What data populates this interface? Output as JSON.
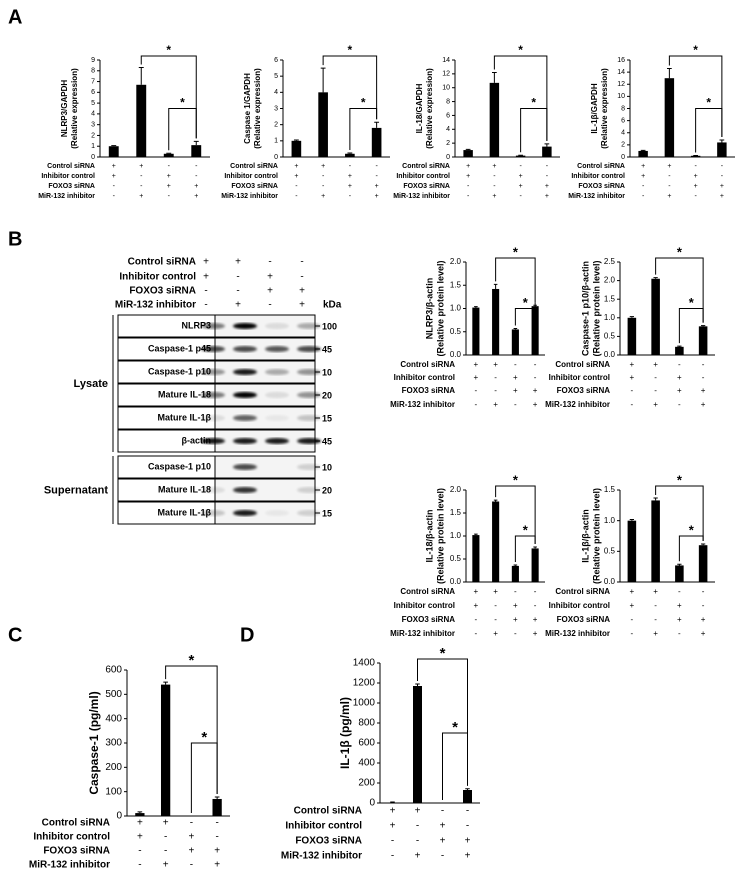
{
  "panels": [
    "A",
    "B",
    "C",
    "D"
  ],
  "treatments": {
    "labels": [
      "Control siRNA",
      "Inhibitor control",
      "FOXO3 siRNA",
      "MiR-132 inhibitor"
    ],
    "signs": [
      [
        "+",
        "+",
        "-",
        "-"
      ],
      [
        "+",
        "-",
        "+",
        "-"
      ],
      [
        "-",
        "-",
        "+",
        "+"
      ],
      [
        "-",
        "+",
        "-",
        "+"
      ]
    ]
  },
  "blot": {
    "kda_label": "kDa",
    "groups": [
      {
        "label": "Lysate",
        "bands": [
          {
            "name": "NLRP3",
            "kda": 100
          },
          {
            "name": "Caspase-1 p45",
            "kda": 45
          },
          {
            "name": "Caspase-1 p10",
            "kda": 10
          },
          {
            "name": "Mature IL-18",
            "kda": 20
          },
          {
            "name": "Mature IL-1β",
            "kda": 15
          },
          {
            "name": "β-actin",
            "kda": 45
          }
        ]
      },
      {
        "label": "Supernatant",
        "bands": [
          {
            "name": "Caspase-1 p10",
            "kda": 10
          },
          {
            "name": "Mature IL-18",
            "kda": 20
          },
          {
            "name": "Mature IL-1β",
            "kda": 15
          }
        ]
      }
    ]
  },
  "chart_data": [
    {
      "type": "bar",
      "ylabel": [
        "NLRP3/GAPDH",
        "(Relative expression)"
      ],
      "ylim": [
        0,
        9
      ],
      "yticks": [
        0,
        1,
        2,
        3,
        4,
        5,
        6,
        7,
        8,
        9
      ],
      "values": [
        1,
        6.7,
        0.3,
        1.1
      ],
      "errors": [
        0.05,
        1.6,
        0.05,
        0.35
      ],
      "color": "#000000",
      "significance": "*"
    },
    {
      "type": "bar",
      "ylabel": [
        "Caspase 1/GAPDH",
        "(Relative expression)"
      ],
      "ylim": [
        0,
        6
      ],
      "yticks": [
        0,
        1,
        2,
        3,
        4,
        5,
        6
      ],
      "values": [
        1,
        4,
        0.2,
        1.8
      ],
      "errors": [
        0.05,
        1.5,
        0.05,
        0.35
      ],
      "color": "#000000",
      "significance": "*"
    },
    {
      "type": "bar",
      "ylabel": [
        "IL-18/GAPDH",
        "(Relative expression)"
      ],
      "ylim": [
        0,
        14
      ],
      "yticks": [
        0,
        2,
        4,
        6,
        8,
        10,
        12,
        14
      ],
      "values": [
        1,
        10.7,
        0.2,
        1.5
      ],
      "errors": [
        0.1,
        1.5,
        0.05,
        0.4
      ],
      "color": "#000000",
      "significance": "*"
    },
    {
      "type": "bar",
      "ylabel": [
        "IL-1β/GAPDH",
        "(Relative expression)"
      ],
      "ylim": [
        0,
        16
      ],
      "yticks": [
        0,
        2,
        4,
        6,
        8,
        10,
        12,
        14,
        16
      ],
      "values": [
        1,
        13,
        0.2,
        2.4
      ],
      "errors": [
        0.1,
        1.6,
        0.05,
        0.4
      ],
      "color": "#000000",
      "significance": "*"
    },
    {
      "type": "bar",
      "ylabel": [
        "NLRP3/β-actin",
        "(Relative protein level)"
      ],
      "ylim": [
        0,
        2
      ],
      "yticks": [
        {
          "value": 0,
          "label": "0.0"
        },
        0.5,
        {
          "value": 1,
          "label": "1.0"
        },
        1.5,
        {
          "value": 2,
          "label": "2.0"
        }
      ],
      "values": [
        1.02,
        1.42,
        0.55,
        1.05
      ],
      "errors": [
        0.02,
        0.1,
        0.02,
        0.02
      ],
      "color": "#000000",
      "significance": "*"
    },
    {
      "type": "bar",
      "ylabel": [
        "Caspase-1 p10/β-actin",
        "(Relative protein level)"
      ],
      "ylim": [
        0,
        2.5
      ],
      "yticks": [
        {
          "value": 0,
          "label": "0.0"
        },
        0.5,
        {
          "value": 1,
          "label": "1.0"
        },
        1.5,
        {
          "value": 2,
          "label": "2.0"
        },
        2.5
      ],
      "values": [
        1.0,
        2.05,
        0.22,
        0.77
      ],
      "errors": [
        0.03,
        0.03,
        0.02,
        0.02
      ],
      "color": "#000000",
      "significance": "*"
    },
    {
      "type": "bar",
      "ylabel": [
        "IL-18/β-actin",
        "(Relative protein level)"
      ],
      "ylim": [
        0,
        2
      ],
      "yticks": [
        {
          "value": 0,
          "label": "0.0"
        },
        0.5,
        {
          "value": 1,
          "label": "1.0"
        },
        1.5,
        {
          "value": 2,
          "label": "2.0"
        }
      ],
      "values": [
        1.02,
        1.75,
        0.35,
        0.73
      ],
      "errors": [
        0.02,
        0.03,
        0.02,
        0.03
      ],
      "color": "#000000",
      "significance": "*"
    },
    {
      "type": "bar",
      "ylabel": [
        "IL-1β/β-actin",
        "(Relative protein level)"
      ],
      "ylim": [
        0,
        1.5
      ],
      "yticks": [
        {
          "value": 0,
          "label": "0.0"
        },
        0.5,
        {
          "value": 1,
          "label": "1.0"
        },
        1.5
      ],
      "values": [
        1.0,
        1.33,
        0.27,
        0.6
      ],
      "errors": [
        0.02,
        0.04,
        0.02,
        0.02
      ],
      "color": "#000000",
      "significance": "*"
    },
    {
      "type": "bar",
      "ylabel": [
        "Caspase-1 (pg/ml)"
      ],
      "ylim": [
        0,
        600
      ],
      "yticks": [
        0,
        100,
        200,
        300,
        400,
        500,
        600
      ],
      "values": [
        12,
        540,
        0,
        70
      ],
      "errors": [
        5,
        10,
        0,
        8
      ],
      "color": "#000000",
      "significance": "*"
    },
    {
      "type": "bar",
      "ylabel": [
        "IL-1β (pg/ml)"
      ],
      "ylim": [
        0,
        1400
      ],
      "yticks": [
        0,
        200,
        400,
        600,
        800,
        1000,
        1200,
        1400
      ],
      "values": [
        5,
        1170,
        0,
        130
      ],
      "errors": [
        5,
        20,
        0,
        12
      ],
      "color": "#000000",
      "significance": "*"
    }
  ]
}
